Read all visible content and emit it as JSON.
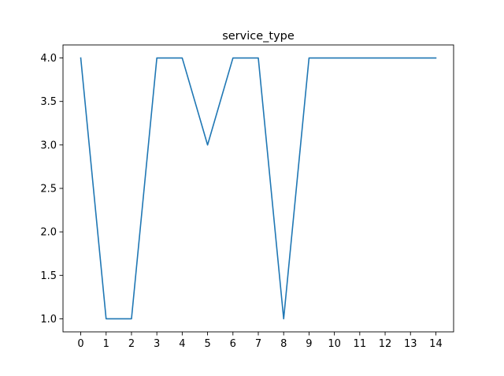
{
  "chart_data": {
    "type": "line",
    "title": "service_type",
    "xlabel": "",
    "ylabel": "",
    "x": [
      0,
      1,
      2,
      3,
      4,
      5,
      6,
      7,
      8,
      9,
      10,
      11,
      12,
      13,
      14
    ],
    "series": [
      {
        "values": [
          4.0,
          1.0,
          1.0,
          4.0,
          4.0,
          3.0,
          4.0,
          4.0,
          1.0,
          4.0,
          4.0,
          4.0,
          4.0,
          4.0,
          4.0
        ],
        "color": "#1f77b4"
      }
    ],
    "xticks": [
      "0",
      "1",
      "2",
      "3",
      "4",
      "5",
      "6",
      "7",
      "8",
      "9",
      "10",
      "11",
      "12",
      "13",
      "14"
    ],
    "yticks": [
      "1.0",
      "1.5",
      "2.0",
      "2.5",
      "3.0",
      "3.5",
      "4.0"
    ],
    "xlim": [
      -0.7,
      14.7
    ],
    "ylim": [
      0.85,
      4.15
    ],
    "grid": false,
    "legend": "none"
  }
}
